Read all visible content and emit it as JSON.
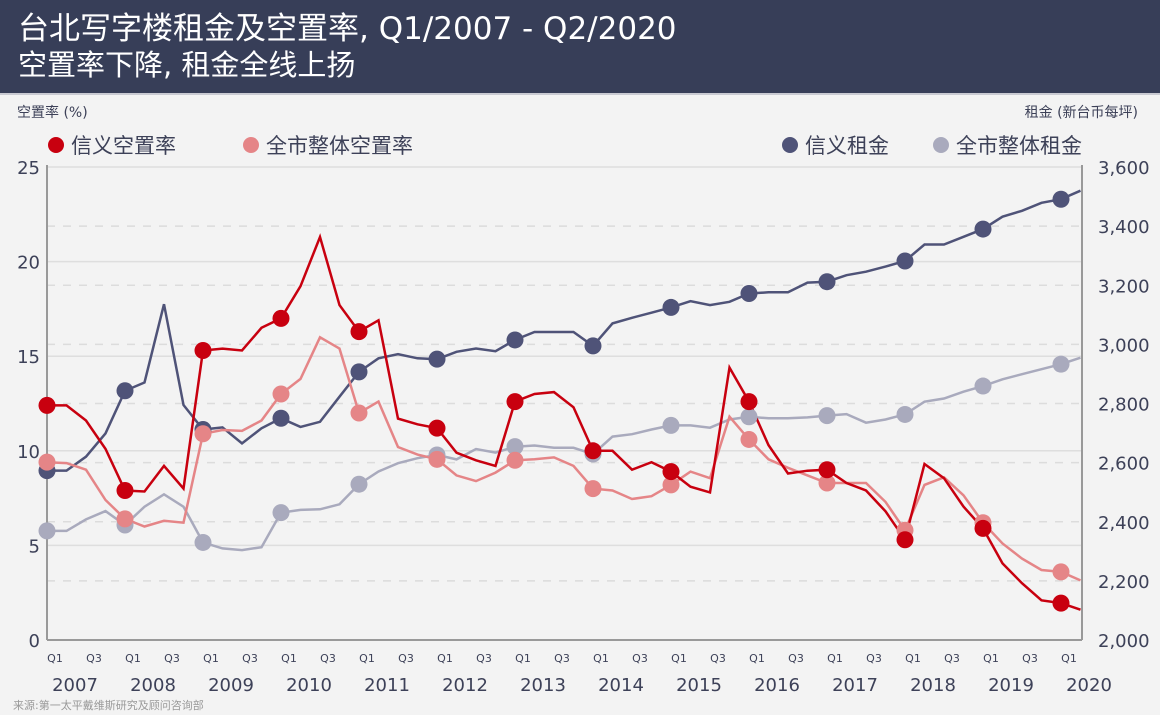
{
  "header": {
    "title": "台北写字楼租金及空置率, Q1/2007 - Q2/2020",
    "subtitle": "空置率下降, 租金全线上扬"
  },
  "source": "来源:第一太平戴维斯研究及顾问咨询部",
  "chart_data": {
    "type": "line",
    "title": "台北写字楼租金及空置率, Q1/2007 - Q2/2020",
    "subtitle": "空置率下降, 租金全线上扬",
    "ylabel_left": "空置率 (%)",
    "ylabel_right": "租金 (新台币每坪)",
    "ylim_left": [
      0,
      25
    ],
    "ylim_right": [
      2000,
      3600
    ],
    "yticks_left": [
      "0",
      "5",
      "10",
      "15",
      "20",
      "25"
    ],
    "yticks_right": [
      "2,000",
      "2,200",
      "2,400",
      "2,600",
      "2,800",
      "3,000",
      "3,200",
      "3,400",
      "3,600"
    ],
    "quarter_tick_labels": [
      "Q1",
      "Q3"
    ],
    "years": [
      "2007",
      "2008",
      "2009",
      "2010",
      "2011",
      "2012",
      "2013",
      "2014",
      "2015",
      "2016",
      "2017",
      "2018",
      "2019",
      "2020"
    ],
    "x_start": "Q1/2007",
    "x_end": "Q2/2020",
    "grid": true,
    "marker_every_quarters": 4,
    "series": [
      {
        "name": "信义空置率",
        "axis": "left",
        "color": "#c8000f",
        "legend": "top-left",
        "values": [
          12.4,
          12.4,
          11.6,
          10.1,
          7.9,
          7.85,
          9.2,
          8.0,
          15.3,
          15.4,
          15.3,
          16.5,
          17.0,
          18.7,
          21.3,
          17.7,
          16.3,
          16.9,
          11.7,
          11.4,
          11.2,
          9.9,
          9.5,
          9.2,
          12.6,
          13.0,
          13.1,
          12.3,
          10.0,
          10.0,
          9.0,
          9.4,
          8.9,
          8.1,
          7.8,
          14.4,
          12.6,
          10.3,
          8.8,
          8.95,
          9.0,
          8.3,
          7.9,
          6.8,
          5.3,
          9.3,
          8.55,
          7.05,
          5.9,
          4.05,
          3.0,
          2.1,
          1.95,
          1.6
        ]
      },
      {
        "name": "全市整体空置率",
        "axis": "left",
        "color": "#e58587",
        "legend": "top-left",
        "values": [
          9.4,
          9.35,
          9.0,
          7.4,
          6.4,
          6.0,
          6.3,
          6.2,
          10.9,
          11.1,
          11.05,
          11.6,
          13.0,
          13.8,
          16.0,
          15.4,
          12.0,
          12.6,
          10.2,
          9.8,
          9.55,
          8.7,
          8.4,
          8.85,
          9.5,
          9.55,
          9.65,
          9.2,
          8.0,
          7.9,
          7.45,
          7.6,
          8.2,
          8.9,
          8.55,
          11.8,
          10.6,
          9.55,
          9.1,
          8.7,
          8.3,
          8.3,
          8.3,
          7.3,
          5.8,
          8.2,
          8.6,
          7.65,
          6.2,
          5.1,
          4.3,
          3.7,
          3.6,
          3.15
        ]
      },
      {
        "name": "信义租金",
        "axis": "right",
        "color": "#4f5378",
        "legend": "top-right",
        "values": [
          2573,
          2573,
          2620,
          2699,
          2843,
          2871,
          3136,
          2795,
          2712,
          2719,
          2665,
          2716,
          2750,
          2721,
          2738,
          2823,
          2907,
          2953,
          2967,
          2953,
          2950,
          2975,
          2986,
          2977,
          3015,
          3042,
          3042,
          3042,
          2995,
          3071,
          3090,
          3107,
          3125,
          3146,
          3133,
          3144,
          3172,
          3176,
          3176,
          3209,
          3212,
          3234,
          3246,
          3263,
          3282,
          3338,
          3338,
          3364,
          3390,
          3432,
          3452,
          3479,
          3491,
          3520
        ]
      },
      {
        "name": "全市整体租金",
        "axis": "right",
        "color": "#a9aabd",
        "legend": "top-right",
        "values": [
          2369,
          2369,
          2408,
          2436,
          2389,
          2451,
          2493,
          2451,
          2330,
          2310,
          2304,
          2314,
          2431,
          2440,
          2442,
          2459,
          2527,
          2570,
          2598,
          2615,
          2626,
          2611,
          2646,
          2634,
          2654,
          2658,
          2650,
          2650,
          2629,
          2688,
          2696,
          2712,
          2726,
          2726,
          2718,
          2746,
          2755,
          2750,
          2750,
          2753,
          2759,
          2764,
          2735,
          2746,
          2763,
          2806,
          2817,
          2840,
          2859,
          2882,
          2899,
          2916,
          2933,
          2955
        ]
      }
    ]
  }
}
